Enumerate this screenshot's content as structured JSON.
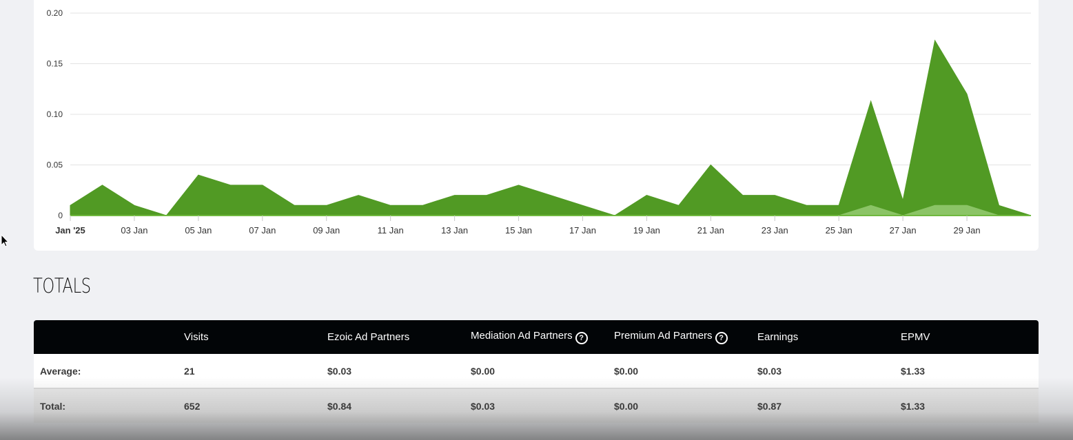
{
  "chart_data": {
    "type": "area",
    "title": "",
    "xlabel": "",
    "ylabel": "",
    "ylim": [
      0,
      0.2
    ],
    "yticks": [
      "0",
      "0.05",
      "0.10",
      "0.15",
      "0.20"
    ],
    "x_tick_labels": [
      "Jan '25",
      "03 Jan",
      "05 Jan",
      "07 Jan",
      "09 Jan",
      "11 Jan",
      "13 Jan",
      "15 Jan",
      "17 Jan",
      "19 Jan",
      "21 Jan",
      "23 Jan",
      "25 Jan",
      "27 Jan",
      "29 Jan"
    ],
    "x": [
      "01 Jan",
      "02 Jan",
      "03 Jan",
      "04 Jan",
      "05 Jan",
      "06 Jan",
      "07 Jan",
      "08 Jan",
      "09 Jan",
      "10 Jan",
      "11 Jan",
      "12 Jan",
      "13 Jan",
      "14 Jan",
      "15 Jan",
      "16 Jan",
      "17 Jan",
      "18 Jan",
      "19 Jan",
      "20 Jan",
      "21 Jan",
      "22 Jan",
      "23 Jan",
      "24 Jan",
      "25 Jan",
      "26 Jan",
      "27 Jan",
      "28 Jan",
      "29 Jan",
      "30 Jan",
      "31 Jan"
    ],
    "grid": true,
    "series": [
      {
        "color": "#519a24",
        "values": [
          0.01,
          0.03,
          0.01,
          0,
          0.04,
          0.03,
          0.03,
          0.01,
          0.01,
          0.02,
          0.01,
          0.01,
          0.02,
          0.02,
          0.03,
          0.02,
          0.01,
          0,
          0.02,
          0.01,
          0.05,
          0.02,
          0.02,
          0.01,
          0.01,
          0.113,
          0.015,
          0.173,
          0.12,
          0.01,
          0
        ]
      },
      {
        "color": "#8bc466",
        "values": [
          0,
          0,
          0,
          0,
          0,
          0,
          0,
          0,
          0,
          0,
          0,
          0,
          0,
          0,
          0,
          0,
          0,
          0,
          0,
          0,
          0,
          0,
          0,
          0,
          0,
          0.01,
          0,
          0.01,
          0.01,
          0,
          0
        ]
      }
    ]
  },
  "totals": {
    "title": "TOTALS",
    "columns": [
      "",
      "Visits",
      "Ezoic Ad Partners",
      "Mediation Ad Partners",
      "Premium Ad Partners",
      "Earnings",
      "EPMV"
    ],
    "rows": [
      [
        "Average:",
        "21",
        "$0.03",
        "$0.00",
        "$0.00",
        "$0.03",
        "$1.33"
      ],
      [
        "Total:",
        "652",
        "$0.84",
        "$0.03",
        "$0.00",
        "$0.87",
        "$1.33"
      ]
    ],
    "help_icon": "question-circle-icon"
  }
}
